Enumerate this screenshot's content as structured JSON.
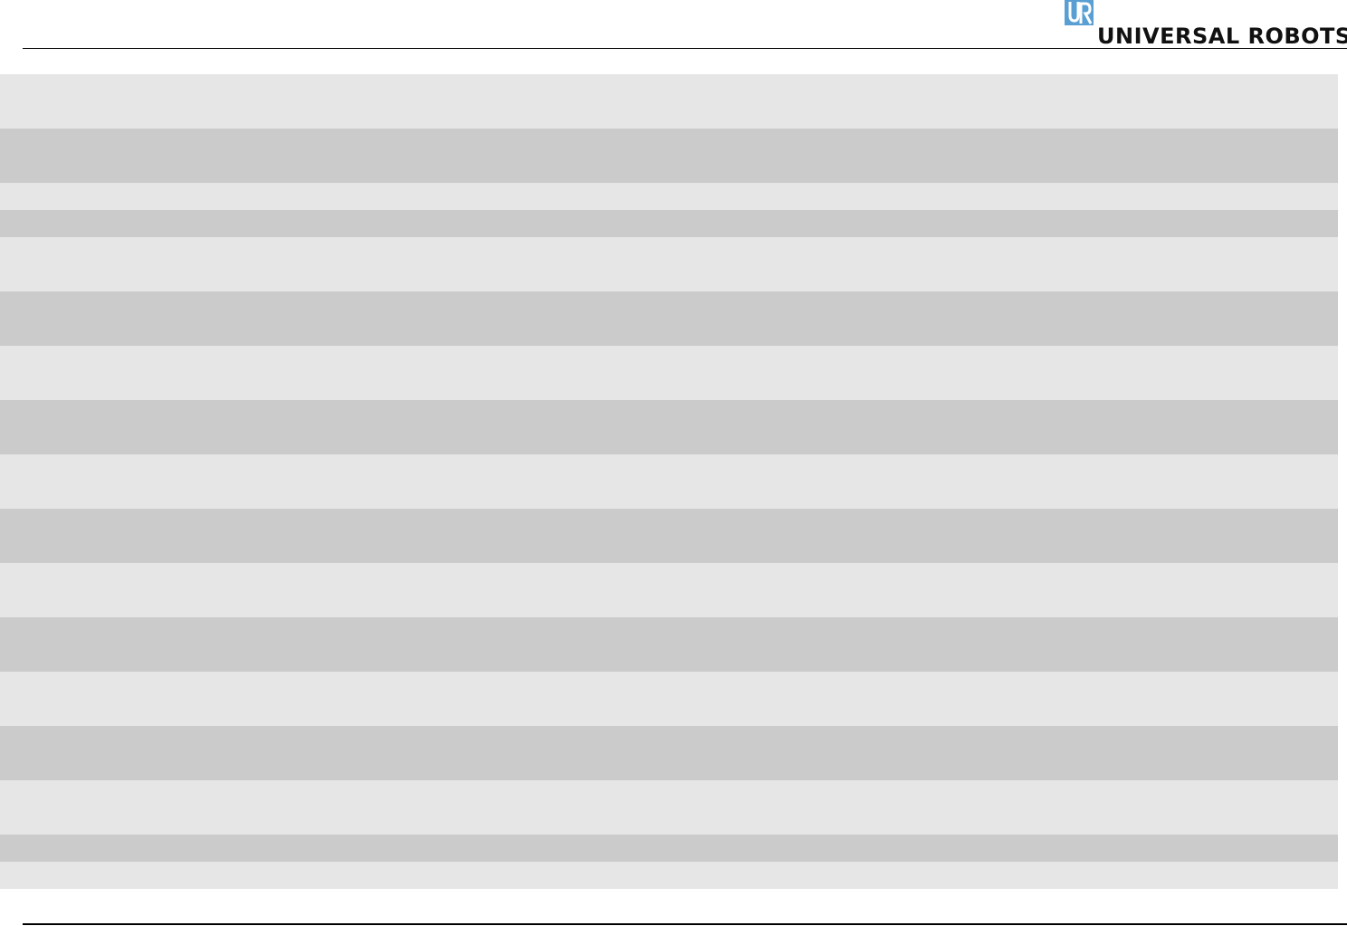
{
  "header": {
    "logo_text": "UNIVERSAL ROBOTS",
    "logo_color": "#5a9fd4"
  },
  "table": {
    "row_colors": [
      "#e6e6e6",
      "#cbcbcb"
    ],
    "rows": [
      {
        "cells": []
      },
      {
        "cells": []
      },
      {
        "cells": []
      },
      {
        "cells": []
      },
      {
        "cells": []
      },
      {
        "cells": []
      },
      {
        "cells": []
      },
      {
        "cells": []
      },
      {
        "cells": []
      },
      {
        "cells": []
      },
      {
        "cells": []
      },
      {
        "cells": []
      },
      {
        "cells": []
      },
      {
        "cells": []
      },
      {
        "cells": []
      },
      {
        "cells": []
      },
      {
        "cells": []
      }
    ]
  }
}
